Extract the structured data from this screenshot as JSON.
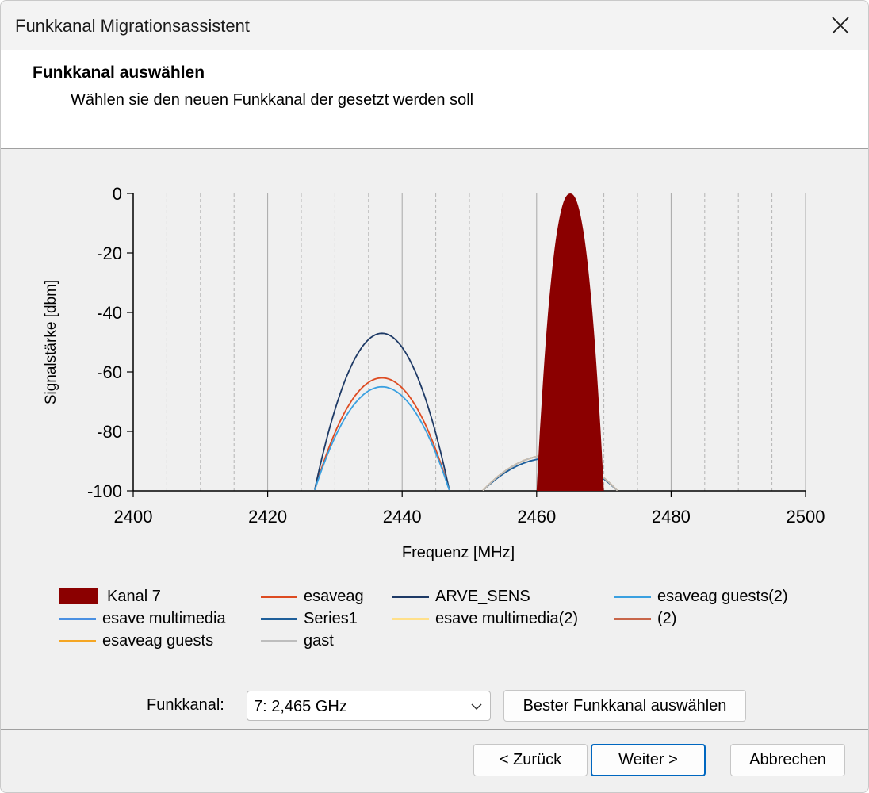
{
  "window": {
    "title": "Funkkanal Migrationsassistent"
  },
  "header": {
    "title": "Funkkanal auswählen",
    "subtitle": "Wählen sie den neuen Funkkanal der gesetzt werden soll"
  },
  "chart_data": {
    "type": "area",
    "xlabel": "Frequenz [MHz]",
    "ylabel": "Signalstärke [dbm]",
    "xlim": [
      2400,
      2500
    ],
    "ylim": [
      -100,
      0
    ],
    "x_ticks": [
      "2400",
      "2420",
      "2440",
      "2460",
      "2480",
      "2500"
    ],
    "y_ticks": [
      "0",
      "-20",
      "-40",
      "-60",
      "-80",
      "-100"
    ],
    "grid": true,
    "legend_position": "bottom",
    "series": [
      {
        "name": "Kanal 7",
        "style": "filled",
        "color": "#8b0000",
        "center": 2465,
        "half_width": 5,
        "peak": 0
      },
      {
        "name": "esaveag",
        "color": "#dd4b21",
        "center": 2437,
        "half_width": 10,
        "peak": -62
      },
      {
        "name": "ARVE_SENS",
        "color": "#1e3a66",
        "center": 2437,
        "half_width": 10,
        "peak": -47
      },
      {
        "name": "esaveag guests(2)",
        "color": "#3aa0e0",
        "center": 2437,
        "half_width": 10,
        "peak": -65
      },
      {
        "name": "esave multimedia",
        "color": "#4a90e2",
        "center": 2462,
        "half_width": 10,
        "peak": -89
      },
      {
        "name": "Series1",
        "color": "#1f5f9a",
        "center": 2462,
        "half_width": 10,
        "peak": -89
      },
      {
        "name": "esave multimedia(2)",
        "color": "#ffe08a",
        "center": 2462,
        "half_width": 10,
        "peak": -88
      },
      {
        "name": "(2)",
        "color": "#c8664a",
        "center": 2462,
        "half_width": 10,
        "peak": -88
      },
      {
        "name": "esaveag guests",
        "color": "#f5a623",
        "center": 2462,
        "half_width": 10,
        "peak": -88
      },
      {
        "name": "gast",
        "color": "#bdbdbd",
        "center": 2462,
        "half_width": 10,
        "peak": -88
      }
    ]
  },
  "controls": {
    "channel_label": "Funkkanal:",
    "channel_value": "7: 2,465 GHz",
    "best_channel_button": "Bester Funkkanal auswählen"
  },
  "footer": {
    "back_button": "< Zurück",
    "next_button": "Weiter >",
    "cancel_button": "Abbrechen"
  },
  "icons": {
    "close": "close-icon",
    "dropdown": "chevron-down-icon"
  }
}
